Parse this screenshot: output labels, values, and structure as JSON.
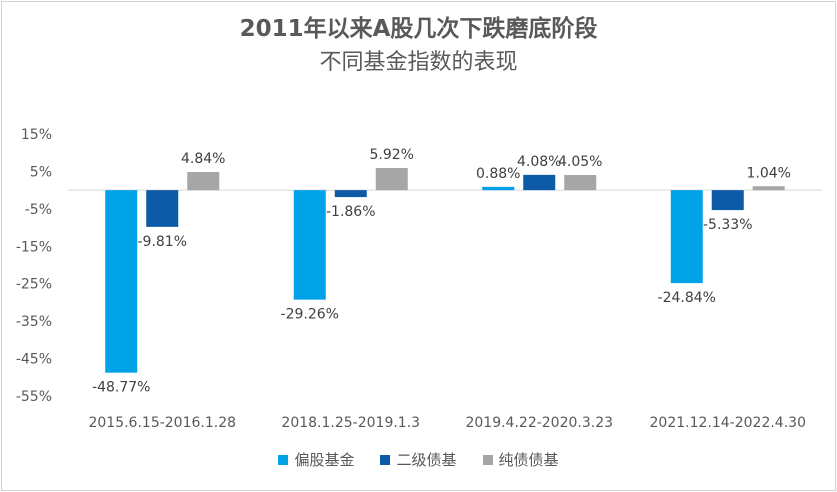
{
  "chart_data": {
    "type": "bar",
    "title_line1": "2011年以来A股几次下跌磨底阶段",
    "title_line2": "不同基金指数的表现",
    "categories": [
      "2015.6.15-2016.1.28",
      "2018.1.25-2019.1.3",
      "2019.4.22-2020.3.23",
      "2021.12.14-2022.4.30"
    ],
    "series": [
      {
        "name": "偏股基金",
        "values": [
          -48.77,
          -29.26,
          0.88,
          -24.84
        ],
        "labels": [
          "-48.77%",
          "-29.26%",
          "0.88%",
          "-24.84%"
        ],
        "color": "#00a2e8"
      },
      {
        "name": "二级债基",
        "values": [
          -9.81,
          -1.86,
          4.08,
          -5.33
        ],
        "labels": [
          "-9.81%",
          "-1.86%",
          "4.08%",
          "-5.33%"
        ],
        "color": "#0d5aa7"
      },
      {
        "name": "纯债债基",
        "values": [
          4.84,
          5.92,
          4.05,
          1.04
        ],
        "labels": [
          "4.84%",
          "5.92%",
          "4.05%",
          "1.04%"
        ],
        "color": "#a6a6a6"
      }
    ],
    "ylim": [
      -55,
      15
    ],
    "yticks": [
      15,
      5,
      -5,
      -15,
      -25,
      -35,
      -45,
      -55
    ],
    "ytick_labels": [
      "15%",
      "5%",
      "-5%",
      "-15%",
      "-25%",
      "-35%",
      "-45%",
      "-55%"
    ],
    "grid": false,
    "legend_position": "bottom"
  }
}
